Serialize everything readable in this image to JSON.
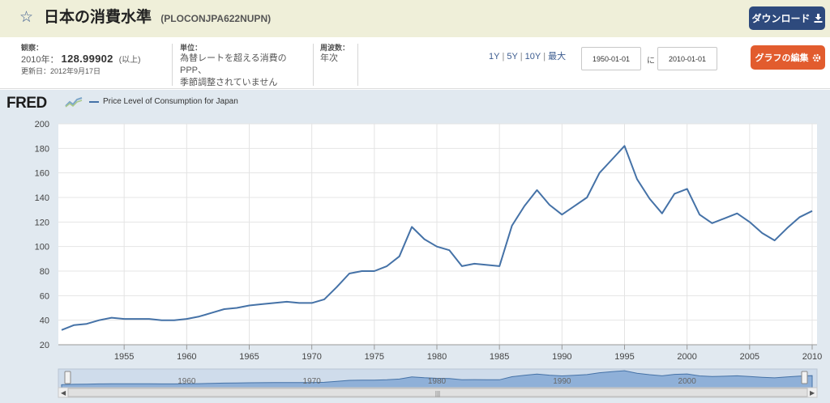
{
  "header": {
    "star_icon": "star-outline-icon",
    "title": "日本の消費水準",
    "series_id": "(PLOCONJPA622NUPN)",
    "download_label": "ダウンロード"
  },
  "meta": {
    "observation_label": "観察：",
    "observation_period": "2010年：",
    "observation_value": "128.99902",
    "observation_suffix": "(以上)",
    "updated": "更新日：2012年9月17日",
    "units_label": "単位：",
    "units_line1": "為替レートを超える消費のPPP、",
    "units_line2": "季節調整されていません",
    "frequency_label": "周波数：",
    "frequency_value": "年次"
  },
  "controls": {
    "range_links": [
      "1Y",
      "5Y",
      "10Y",
      "最大"
    ],
    "start_date": "1950-01-01",
    "to_label": "に",
    "end_date": "2010-01-01",
    "edit_label": "グラフの編集"
  },
  "colors": {
    "header_bg": "#efefd9",
    "download_bg": "#2e4a7d",
    "edit_bg": "#e25c2e",
    "chart_bg": "#e1e9f0",
    "series": "#4572a7"
  },
  "logo_text": "FRED",
  "chart_data": {
    "type": "line",
    "title": "",
    "xlabel": "",
    "ylabel": "",
    "legend": "Price Level of Consumption for Japan",
    "legend_position": "top-left",
    "grid": true,
    "xlim": [
      1950,
      2010
    ],
    "ylim": [
      20,
      200
    ],
    "x_ticks": [
      1955,
      1960,
      1965,
      1970,
      1975,
      1980,
      1985,
      1990,
      1995,
      2000,
      2005,
      2010
    ],
    "y_ticks": [
      20,
      40,
      60,
      80,
      100,
      120,
      140,
      160,
      180,
      200
    ],
    "navigator_ticks": [
      1960,
      1970,
      1980,
      1990,
      2000
    ],
    "series": [
      {
        "name": "Price Level of Consumption for Japan",
        "x": [
          1950,
          1951,
          1952,
          1953,
          1954,
          1955,
          1956,
          1957,
          1958,
          1959,
          1960,
          1961,
          1962,
          1963,
          1964,
          1965,
          1966,
          1967,
          1968,
          1969,
          1970,
          1971,
          1972,
          1973,
          1974,
          1975,
          1976,
          1977,
          1978,
          1979,
          1980,
          1981,
          1982,
          1983,
          1984,
          1985,
          1986,
          1987,
          1988,
          1989,
          1990,
          1991,
          1992,
          1993,
          1994,
          1995,
          1996,
          1997,
          1998,
          1999,
          2000,
          2001,
          2002,
          2003,
          2004,
          2005,
          2006,
          2007,
          2008,
          2009,
          2010
        ],
        "values": [
          32,
          36,
          37,
          40,
          42,
          41,
          41,
          41,
          40,
          40,
          41,
          43,
          46,
          49,
          50,
          52,
          53,
          54,
          55,
          54,
          54,
          57,
          67,
          78,
          80,
          80,
          84,
          92,
          116,
          106,
          100,
          97,
          84,
          86,
          85,
          84,
          117,
          133,
          146,
          134,
          126,
          133,
          140,
          160,
          171,
          182,
          155,
          139,
          127,
          143,
          147,
          126,
          119,
          123,
          127,
          120,
          111,
          105,
          115,
          124,
          129
        ]
      }
    ]
  }
}
